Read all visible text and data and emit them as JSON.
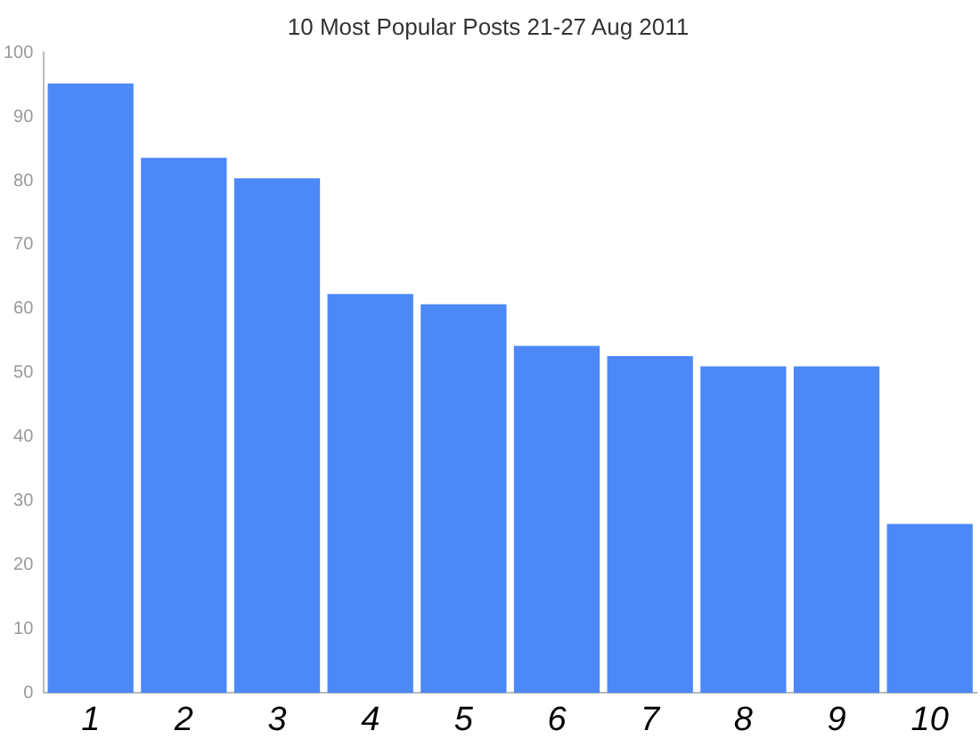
{
  "chart_data": {
    "type": "bar",
    "title": "10 Most Popular Posts 21-27 Aug 2011",
    "categories": [
      "1",
      "2",
      "3",
      "4",
      "5",
      "6",
      "7",
      "8",
      "9",
      "10"
    ],
    "values": [
      95.2,
      83.6,
      80.4,
      62.3,
      60.7,
      54.2,
      52.6,
      51,
      51,
      26.4
    ],
    "color": "#4d88f7",
    "ylim": [
      0,
      100
    ],
    "yticks": [
      0,
      10,
      20,
      30,
      40,
      50,
      60,
      70,
      80,
      90,
      100
    ],
    "grid": false,
    "legend": false
  }
}
